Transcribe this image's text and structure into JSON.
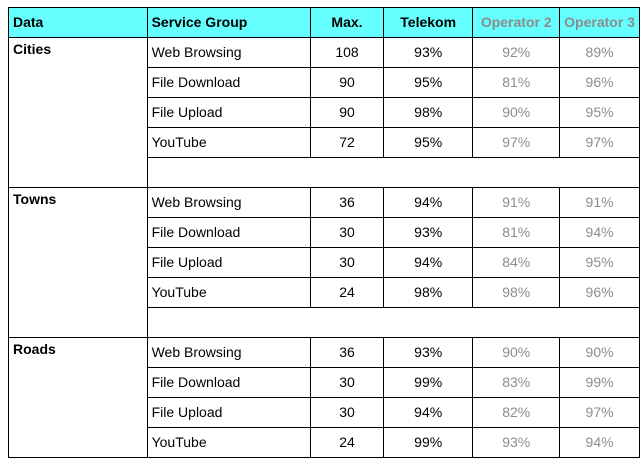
{
  "headers": [
    "Data",
    "Service Group",
    "Max.",
    "Telekom",
    "Operator 2",
    "Operator 3"
  ],
  "groups": [
    {
      "name": "Cities",
      "rows": [
        {
          "service": "Web Browsing",
          "max": "108",
          "telekom": "93%",
          "op2": "92%",
          "op3": "89%"
        },
        {
          "service": "File Download",
          "max": "90",
          "telekom": "95%",
          "op2": "81%",
          "op3": "96%"
        },
        {
          "service": "File Upload",
          "max": "90",
          "telekom": "98%",
          "op2": "90%",
          "op3": "95%"
        },
        {
          "service": "YouTube",
          "max": "72",
          "telekom": "95%",
          "op2": "97%",
          "op3": "97%"
        }
      ]
    },
    {
      "name": "Towns",
      "rows": [
        {
          "service": "Web Browsing",
          "max": "36",
          "telekom": "94%",
          "op2": "91%",
          "op3": "91%"
        },
        {
          "service": "File Download",
          "max": "30",
          "telekom": "93%",
          "op2": "81%",
          "op3": "94%"
        },
        {
          "service": "File Upload",
          "max": "30",
          "telekom": "94%",
          "op2": "84%",
          "op3": "95%"
        },
        {
          "service": "YouTube",
          "max": "24",
          "telekom": "98%",
          "op2": "98%",
          "op3": "96%"
        }
      ]
    },
    {
      "name": "Roads",
      "rows": [
        {
          "service": "Web Browsing",
          "max": "36",
          "telekom": "93%",
          "op2": "90%",
          "op3": "90%"
        },
        {
          "service": "File Download",
          "max": "30",
          "telekom": "99%",
          "op2": "83%",
          "op3": "99%"
        },
        {
          "service": "File Upload",
          "max": "30",
          "telekom": "94%",
          "op2": "82%",
          "op3": "97%"
        },
        {
          "service": "YouTube",
          "max": "24",
          "telekom": "99%",
          "op2": "93%",
          "op3": "94%"
        }
      ]
    }
  ],
  "colors": {
    "header_bg": "#66ffff",
    "muted_text": "#8c8c8c"
  }
}
